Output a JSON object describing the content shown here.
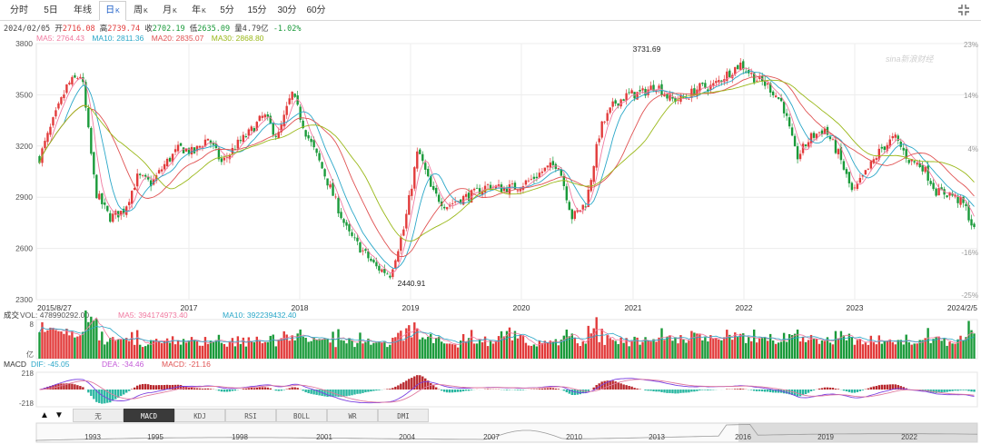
{
  "tabs": [
    {
      "label": "分时",
      "k": ""
    },
    {
      "label": "5日",
      "k": ""
    },
    {
      "label": "年线",
      "k": ""
    },
    {
      "label": "日",
      "k": "K",
      "active": true
    },
    {
      "label": "周",
      "k": "K"
    },
    {
      "label": "月",
      "k": "K"
    },
    {
      "label": "年",
      "k": "K"
    },
    {
      "label": "5分",
      "k": ""
    },
    {
      "label": "15分",
      "k": ""
    },
    {
      "label": "30分",
      "k": ""
    },
    {
      "label": "60分",
      "k": ""
    }
  ],
  "quote": {
    "date": "2024/02/05",
    "open_label": "开",
    "open": "2716.08",
    "high_label": "高",
    "high": "2739.74",
    "close_label": "收",
    "close": "2702.19",
    "low_label": "低",
    "low": "2635.09",
    "vol_label": "量",
    "vol": "4.79亿",
    "change": "-1.02%"
  },
  "ma_line": {
    "ma5": "MA5: 2764.43",
    "ma10": "MA10: 2811.36",
    "ma20": "MA20: 2835.07",
    "ma30": "MA30: 2868.80"
  },
  "volume_header": {
    "title": "成交",
    "vol": "VOL: 478990292.00",
    "ma5": "MA5: 394174973.40",
    "ma10": "MA10: 392239432.40",
    "ytop": "8",
    "yunit": "亿"
  },
  "macd_header": {
    "title": "MACD",
    "dif": "DIF: -45.05",
    "dea": "DEA: -34.46",
    "macd": "MACD: -21.16",
    "ytop": "218",
    "ybottom": "-218"
  },
  "indicator_tabs": [
    "无",
    "MACD",
    "KDJ",
    "RSI",
    "BOLL",
    "WR",
    "DMI"
  ],
  "indicator_active": "MACD",
  "arrows": {
    "up": "▲",
    "down": "▼"
  },
  "overview_years": [
    "1993",
    "1995",
    "1998",
    "2001",
    "2004",
    "2007",
    "2010",
    "2013",
    "2016",
    "2019",
    "2022"
  ],
  "watermark": "sina新浪财经",
  "colors": {
    "up": "#e23b3b",
    "down": "#1a9a3a",
    "ma5": "#f07aa0",
    "ma10": "#2aa7c8",
    "ma20": "#e05252",
    "ma30": "#9ab819",
    "accent": "#1a5cc7"
  },
  "chart_data": {
    "type": "candlestick",
    "x_start": "2015/8/27",
    "x_end": "2024/2/5",
    "x_ticks": [
      "2017",
      "2018",
      "2019",
      "2020",
      "2021",
      "2022",
      "2023"
    ],
    "y_ticks": [
      3800,
      3500,
      3200,
      2900,
      2600,
      2300
    ],
    "ylim": [
      2300,
      3800
    ],
    "right_ticks": [
      "23%",
      "14%",
      "4%",
      "-16%",
      "-25%"
    ],
    "annotations": [
      {
        "label": "3731.69",
        "x": "2021",
        "y": 3731.69
      },
      {
        "label": "2440.91",
        "x": "2019",
        "y": 2440.91
      }
    ],
    "close_series_t": [
      0,
      0.015,
      0.03,
      0.045,
      0.06,
      0.075,
      0.09,
      0.105,
      0.12,
      0.135,
      0.15,
      0.165,
      0.18,
      0.195,
      0.21,
      0.225,
      0.24,
      0.255,
      0.27,
      0.285,
      0.3,
      0.315,
      0.33,
      0.345,
      0.36,
      0.375,
      0.39,
      0.405,
      0.42,
      0.435,
      0.45,
      0.465,
      0.48,
      0.495,
      0.51,
      0.525,
      0.54,
      0.555,
      0.57,
      0.585,
      0.6,
      0.615,
      0.63,
      0.645,
      0.66,
      0.675,
      0.69,
      0.705,
      0.72,
      0.735,
      0.75,
      0.765,
      0.78,
      0.795,
      0.81,
      0.825,
      0.84,
      0.855,
      0.87,
      0.885,
      0.9,
      0.915,
      0.93,
      0.945,
      0.96,
      0.975,
      0.99,
      1.0
    ],
    "close_series": [
      3130,
      3350,
      3560,
      3620,
      2930,
      2780,
      2820,
      3020,
      2980,
      3100,
      3190,
      3160,
      3250,
      3100,
      3200,
      3280,
      3380,
      3250,
      3510,
      3280,
      3100,
      2900,
      2690,
      2590,
      2490,
      2450,
      2720,
      3180,
      2930,
      2850,
      2890,
      2920,
      2970,
      2950,
      2960,
      3000,
      3060,
      3100,
      2780,
      2870,
      3300,
      3450,
      3500,
      3510,
      3560,
      3470,
      3480,
      3540,
      3550,
      3620,
      3680,
      3600,
      3550,
      3450,
      3130,
      3250,
      3300,
      3150,
      2920,
      3050,
      3180,
      3250,
      3120,
      3080,
      2930,
      2920,
      2850,
      2702
    ],
    "volume_ylim": [
      0,
      8
    ],
    "macd_ylim": [
      -218,
      218
    ]
  }
}
